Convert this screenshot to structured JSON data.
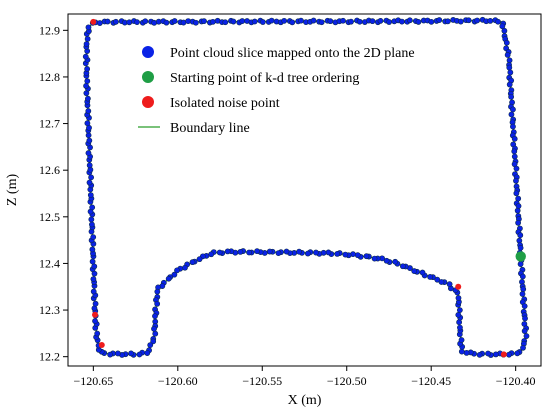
{
  "chart_data": {
    "type": "scatter",
    "xlabel": "X (m)",
    "ylabel": "Z (m)",
    "xlim": [
      -120.665,
      -120.385
    ],
    "ylim": [
      12.18,
      12.935
    ],
    "x_ticks": [
      -120.65,
      -120.6,
      -120.55,
      -120.5,
      -120.45,
      -120.4
    ],
    "x_tick_labels": [
      "−120.65",
      "−120.60",
      "−120.55",
      "−120.50",
      "−120.45",
      "−120.40"
    ],
    "y_ticks": [
      12.2,
      12.3,
      12.4,
      12.5,
      12.6,
      12.7,
      12.8,
      12.9
    ],
    "y_tick_labels": [
      "12.2",
      "12.3",
      "12.4",
      "12.5",
      "12.6",
      "12.7",
      "12.8",
      "12.9"
    ],
    "grid": false,
    "legend_position": "top-center",
    "colors": {
      "cloud_fill": "#0a22e6",
      "cloud_edge": "#0c2a4e",
      "start": "#1f9e45",
      "noise": "#ee1c1c",
      "boundary": "#2a9e2a"
    },
    "legend": [
      {
        "label": "Point cloud slice mapped onto the 2D plane",
        "marker": "circle",
        "color": "#0a22e6"
      },
      {
        "label": "Starting point of k-d tree ordering",
        "marker": "circle",
        "color": "#1f9e45"
      },
      {
        "label": "Isolated noise point",
        "marker": "circle",
        "color": "#ee1c1c"
      },
      {
        "label": "Boundary line",
        "marker": "line",
        "color": "#2a9e2a"
      }
    ],
    "boundary": [
      [
        -120.397,
        12.415
      ],
      [
        -120.396,
        12.36
      ],
      [
        -120.395,
        12.3
      ],
      [
        -120.394,
        12.245
      ],
      [
        -120.396,
        12.215
      ],
      [
        -120.4,
        12.206
      ],
      [
        -120.41,
        12.205
      ],
      [
        -120.425,
        12.206
      ],
      [
        -120.432,
        12.212
      ],
      [
        -120.433,
        12.26
      ],
      [
        -120.434,
        12.335
      ],
      [
        -120.44,
        12.356
      ],
      [
        -120.46,
        12.385
      ],
      [
        -120.47,
        12.4
      ],
      [
        -120.48,
        12.41
      ],
      [
        -120.495,
        12.418
      ],
      [
        -120.51,
        12.422
      ],
      [
        -120.54,
        12.424
      ],
      [
        -120.57,
        12.425
      ],
      [
        -120.58,
        12.422
      ],
      [
        -120.59,
        12.405
      ],
      [
        -120.6,
        12.385
      ],
      [
        -120.612,
        12.345
      ],
      [
        -120.613,
        12.3
      ],
      [
        -120.614,
        12.24
      ],
      [
        -120.618,
        12.208
      ],
      [
        -120.625,
        12.205
      ],
      [
        -120.64,
        12.206
      ],
      [
        -120.646,
        12.209
      ],
      [
        -120.648,
        12.24
      ],
      [
        -120.649,
        12.3
      ],
      [
        -120.65,
        12.4
      ],
      [
        -120.651,
        12.5
      ],
      [
        -120.652,
        12.6
      ],
      [
        -120.653,
        12.7
      ],
      [
        -120.654,
        12.8
      ],
      [
        -120.654,
        12.87
      ],
      [
        -120.653,
        12.905
      ],
      [
        -120.65,
        12.917
      ],
      [
        -120.64,
        12.918
      ],
      [
        -120.6,
        12.918
      ],
      [
        -120.55,
        12.919
      ],
      [
        -120.5,
        12.919
      ],
      [
        -120.45,
        12.92
      ],
      [
        -120.415,
        12.921
      ],
      [
        -120.408,
        12.918
      ],
      [
        -120.406,
        12.88
      ],
      [
        -120.404,
        12.84
      ],
      [
        -120.4,
        12.6
      ],
      [
        -120.397,
        12.415
      ]
    ],
    "start_point": [
      -120.397,
      12.415
    ],
    "noise_points": [
      [
        -120.65,
        12.918
      ],
      [
        -120.434,
        12.35
      ],
      [
        -120.649,
        12.29
      ],
      [
        -120.645,
        12.225
      ],
      [
        -120.407,
        12.205
      ]
    ]
  }
}
